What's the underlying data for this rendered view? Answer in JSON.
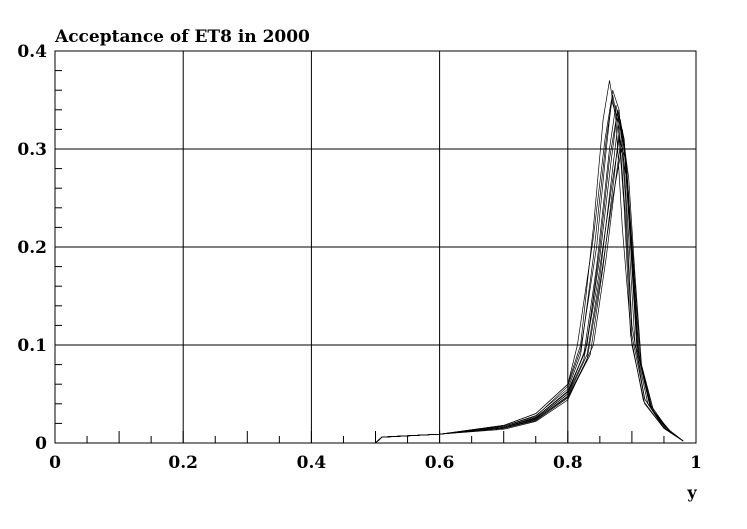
{
  "chart_data": {
    "type": "line",
    "title": "Acceptance of ET8 in 2000",
    "xlabel": "y",
    "ylabel": "",
    "xlim": [
      0,
      1
    ],
    "ylim": [
      0,
      0.4
    ],
    "grid": true,
    "x_ticks": [
      {
        "value": 0,
        "label": "0"
      },
      {
        "value": 0.2,
        "label": "0.2"
      },
      {
        "value": 0.4,
        "label": "0.4"
      },
      {
        "value": 0.6,
        "label": "0.6"
      },
      {
        "value": 0.8,
        "label": "0.8"
      },
      {
        "value": 1,
        "label": "1"
      }
    ],
    "y_ticks": [
      {
        "value": 0,
        "label": "0"
      },
      {
        "value": 0.1,
        "label": "0.1"
      },
      {
        "value": 0.2,
        "label": "0.2"
      },
      {
        "value": 0.3,
        "label": "0.3"
      },
      {
        "value": 0.4,
        "label": "0.4"
      }
    ],
    "series": [
      {
        "x": [
          0.5,
          0.51,
          0.6,
          0.7,
          0.75,
          0.8,
          0.82,
          0.84,
          0.855,
          0.865,
          0.875,
          0.885,
          0.9,
          0.92,
          0.95,
          0.98
        ],
        "y": [
          0,
          0.006,
          0.009,
          0.018,
          0.03,
          0.06,
          0.1,
          0.22,
          0.33,
          0.37,
          0.33,
          0.22,
          0.1,
          0.04,
          0.015,
          0.002
        ]
      },
      {
        "x": [
          0.5,
          0.51,
          0.6,
          0.7,
          0.75,
          0.8,
          0.82,
          0.84,
          0.86,
          0.87,
          0.88,
          0.89,
          0.9,
          0.92,
          0.95,
          0.98
        ],
        "y": [
          0,
          0.006,
          0.009,
          0.017,
          0.028,
          0.055,
          0.09,
          0.19,
          0.31,
          0.355,
          0.32,
          0.23,
          0.11,
          0.045,
          0.016,
          0.002
        ]
      },
      {
        "x": [
          0.5,
          0.51,
          0.6,
          0.7,
          0.75,
          0.8,
          0.825,
          0.845,
          0.865,
          0.875,
          0.885,
          0.895,
          0.905,
          0.925,
          0.955,
          0.98
        ],
        "y": [
          0,
          0.006,
          0.009,
          0.016,
          0.026,
          0.052,
          0.09,
          0.18,
          0.3,
          0.345,
          0.31,
          0.21,
          0.1,
          0.04,
          0.013,
          0.002
        ]
      },
      {
        "x": [
          0.5,
          0.51,
          0.6,
          0.7,
          0.75,
          0.8,
          0.83,
          0.85,
          0.865,
          0.878,
          0.888,
          0.898,
          0.908,
          0.928,
          0.955,
          0.98
        ],
        "y": [
          0,
          0.006,
          0.009,
          0.016,
          0.025,
          0.05,
          0.1,
          0.2,
          0.29,
          0.34,
          0.3,
          0.2,
          0.095,
          0.038,
          0.013,
          0.002
        ]
      },
      {
        "x": [
          0.5,
          0.51,
          0.6,
          0.7,
          0.75,
          0.8,
          0.83,
          0.85,
          0.87,
          0.88,
          0.89,
          0.9,
          0.91,
          0.93,
          0.96,
          0.98
        ],
        "y": [
          0,
          0.006,
          0.009,
          0.015,
          0.024,
          0.048,
          0.09,
          0.17,
          0.28,
          0.335,
          0.29,
          0.19,
          0.09,
          0.035,
          0.012,
          0.002
        ]
      },
      {
        "x": [
          0.5,
          0.51,
          0.6,
          0.7,
          0.75,
          0.8,
          0.835,
          0.855,
          0.872,
          0.882,
          0.892,
          0.902,
          0.912,
          0.932,
          0.96,
          0.98
        ],
        "y": [
          0,
          0.006,
          0.009,
          0.015,
          0.023,
          0.046,
          0.09,
          0.18,
          0.27,
          0.33,
          0.28,
          0.18,
          0.085,
          0.033,
          0.012,
          0.002
        ]
      },
      {
        "x": [
          0.5,
          0.51,
          0.6,
          0.7,
          0.75,
          0.8,
          0.84,
          0.86,
          0.875,
          0.885,
          0.895,
          0.905,
          0.915,
          0.935,
          0.96,
          0.98
        ],
        "y": [
          0,
          0.006,
          0.009,
          0.014,
          0.022,
          0.044,
          0.1,
          0.19,
          0.27,
          0.32,
          0.27,
          0.17,
          0.08,
          0.03,
          0.011,
          0.002
        ]
      },
      {
        "x": [
          0.5,
          0.51,
          0.6,
          0.7,
          0.75,
          0.8,
          0.82,
          0.845,
          0.86,
          0.87,
          0.88,
          0.89,
          0.9,
          0.92,
          0.95,
          0.98
        ],
        "y": [
          0,
          0.006,
          0.009,
          0.017,
          0.027,
          0.058,
          0.095,
          0.2,
          0.3,
          0.36,
          0.34,
          0.25,
          0.12,
          0.045,
          0.015,
          0.002
        ]
      },
      {
        "x": [
          0.5,
          0.51,
          0.6,
          0.7,
          0.75,
          0.8,
          0.825,
          0.848,
          0.868,
          0.88,
          0.89,
          0.9,
          0.91,
          0.93,
          0.958,
          0.98
        ],
        "y": [
          0,
          0.006,
          0.009,
          0.016,
          0.025,
          0.05,
          0.085,
          0.17,
          0.26,
          0.31,
          0.29,
          0.2,
          0.09,
          0.036,
          0.013,
          0.002
        ]
      },
      {
        "x": [
          0.5,
          0.51,
          0.6,
          0.7,
          0.75,
          0.8,
          0.83,
          0.852,
          0.87,
          0.884,
          0.894,
          0.904,
          0.914,
          0.934,
          0.96,
          0.98
        ],
        "y": [
          0,
          0.006,
          0.009,
          0.015,
          0.024,
          0.047,
          0.085,
          0.17,
          0.25,
          0.3,
          0.26,
          0.17,
          0.08,
          0.032,
          0.011,
          0.002
        ]
      },
      {
        "x": [
          0.5,
          0.51,
          0.6,
          0.7,
          0.75,
          0.8,
          0.815,
          0.84,
          0.858,
          0.868,
          0.878,
          0.888,
          0.898,
          0.918,
          0.95,
          0.98
        ],
        "y": [
          0,
          0.006,
          0.009,
          0.018,
          0.03,
          0.06,
          0.1,
          0.21,
          0.31,
          0.35,
          0.33,
          0.24,
          0.11,
          0.043,
          0.015,
          0.002
        ]
      },
      {
        "x": [
          0.5,
          0.51,
          0.6,
          0.7,
          0.75,
          0.8,
          0.828,
          0.85,
          0.868,
          0.878,
          0.888,
          0.898,
          0.908,
          0.928,
          0.956,
          0.98
        ],
        "y": [
          0,
          0.006,
          0.009,
          0.016,
          0.026,
          0.053,
          0.095,
          0.19,
          0.29,
          0.34,
          0.31,
          0.21,
          0.1,
          0.04,
          0.014,
          0.002
        ]
      }
    ]
  }
}
